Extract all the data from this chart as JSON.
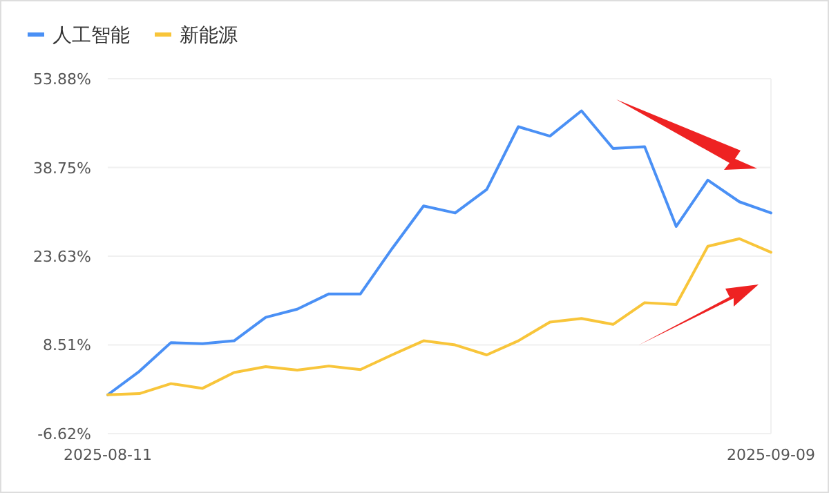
{
  "chart_data": {
    "type": "line",
    "categories": [
      "2025-08-11",
      null,
      null,
      null,
      null,
      null,
      null,
      null,
      null,
      null,
      null,
      null,
      null,
      null,
      null,
      null,
      null,
      null,
      null,
      null,
      null,
      "2025-09-09"
    ],
    "series": [
      {
        "name": "人工智能",
        "color": "#4a90f5",
        "values": [
          0,
          4.0,
          8.9,
          8.7,
          9.2,
          13.2,
          14.6,
          17.2,
          17.2,
          24.9,
          32.2,
          31.0,
          35.0,
          45.7,
          44.1,
          48.4,
          42.0,
          42.3,
          28.7,
          36.6,
          32.9,
          31.0
        ]
      },
      {
        "name": "新能源",
        "color": "#f8c53a",
        "values": [
          0,
          0.2,
          1.9,
          1.1,
          3.8,
          4.8,
          4.2,
          4.9,
          4.3,
          6.8,
          9.2,
          8.5,
          6.8,
          9.2,
          12.4,
          13.0,
          12.0,
          15.7,
          15.4,
          25.3,
          26.6,
          24.3
        ]
      }
    ],
    "ylim": [
      -6.62,
      53.88
    ],
    "yticks": [
      {
        "value": -6.62,
        "label": "-6.62%"
      },
      {
        "value": 8.51,
        "label": "8.51%"
      },
      {
        "value": 23.63,
        "label": "23.63%"
      },
      {
        "value": 38.75,
        "label": "38.75%"
      },
      {
        "value": 53.88,
        "label": "53.88%"
      }
    ],
    "grid": "y",
    "legend": "top left",
    "marker": "none",
    "line_style": "solid"
  }
}
